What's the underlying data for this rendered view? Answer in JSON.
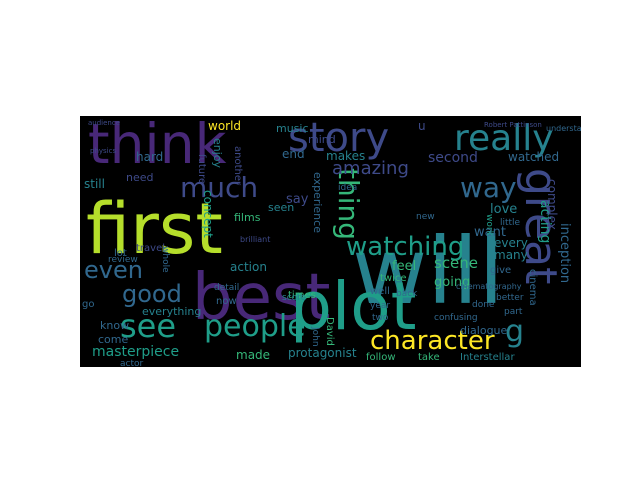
{
  "canvas": {
    "background": "#ffffff",
    "cloud_background": "#000000"
  },
  "palette": {
    "purple": "#482878",
    "indigo": "#3e4a89",
    "blue": "#31688e",
    "teal": "#26828e",
    "green": "#1f9e89",
    "mint": "#35b779",
    "lime": "#b5de2b",
    "yellow": "#fde725"
  },
  "words": [
    {
      "text": "will",
      "color": "teal"
    },
    {
      "text": "best",
      "color": "purple"
    },
    {
      "text": "first",
      "color": "lime"
    },
    {
      "text": "plot",
      "color": "green"
    },
    {
      "text": "think",
      "color": "purple"
    },
    {
      "text": "story",
      "color": "indigo"
    },
    {
      "text": "really",
      "color": "teal"
    },
    {
      "text": "great",
      "color": "indigo"
    },
    {
      "text": "people",
      "color": "green"
    },
    {
      "text": "see",
      "color": "green"
    },
    {
      "text": "watching",
      "color": "green"
    },
    {
      "text": "character",
      "color": "yellow"
    },
    {
      "text": "much",
      "color": "indigo"
    },
    {
      "text": "even",
      "color": "blue"
    },
    {
      "text": "good",
      "color": "blue"
    },
    {
      "text": "way",
      "color": "blue"
    },
    {
      "text": "thing",
      "color": "mint"
    },
    {
      "text": "amazing",
      "color": "indigo"
    },
    {
      "text": "masterpiece",
      "color": "green"
    },
    {
      "text": "g",
      "color": "teal"
    },
    {
      "text": "inception",
      "color": "blue"
    },
    {
      "text": "acting",
      "color": "green"
    },
    {
      "text": "concept",
      "color": "green"
    },
    {
      "text": "second",
      "color": "indigo"
    },
    {
      "text": "watched",
      "color": "blue"
    },
    {
      "text": "scene",
      "color": "mint"
    },
    {
      "text": "feel",
      "color": "mint"
    },
    {
      "text": "going",
      "color": "mint"
    },
    {
      "text": "love",
      "color": "teal"
    },
    {
      "text": "want",
      "color": "blue"
    },
    {
      "text": "every",
      "color": "teal"
    },
    {
      "text": "many",
      "color": "teal"
    },
    {
      "text": "action",
      "color": "teal"
    },
    {
      "text": "end",
      "color": "blue"
    },
    {
      "text": "makes",
      "color": "teal"
    },
    {
      "text": "world",
      "color": "yellow"
    },
    {
      "text": "music",
      "color": "teal"
    },
    {
      "text": "hard",
      "color": "blue"
    },
    {
      "text": "enjoy",
      "color": "teal"
    },
    {
      "text": "say",
      "color": "indigo"
    },
    {
      "text": "seen",
      "color": "teal"
    },
    {
      "text": "films",
      "color": "mint"
    },
    {
      "text": "need",
      "color": "indigo"
    },
    {
      "text": "still",
      "color": "teal"
    },
    {
      "text": "know",
      "color": "blue"
    },
    {
      "text": "come",
      "color": "blue"
    },
    {
      "text": "made",
      "color": "mint"
    },
    {
      "text": "protagonist",
      "color": "teal"
    },
    {
      "text": "follow",
      "color": "mint"
    },
    {
      "text": "take",
      "color": "mint"
    },
    {
      "text": "Interstellar",
      "color": "teal"
    },
    {
      "text": "dialogue",
      "color": "blue"
    },
    {
      "text": "experience",
      "color": "blue"
    },
    {
      "text": "complex",
      "color": "indigo"
    },
    {
      "text": "cinema",
      "color": "blue"
    },
    {
      "text": "twice",
      "color": "mint"
    },
    {
      "text": "times",
      "color": "mint"
    },
    {
      "text": "well",
      "color": "blue"
    },
    {
      "text": "give",
      "color": "blue"
    },
    {
      "text": "little",
      "color": "blue"
    },
    {
      "text": "work",
      "color": "green"
    },
    {
      "text": "lot",
      "color": "blue"
    },
    {
      "text": "now",
      "color": "blue"
    },
    {
      "text": "David",
      "color": "mint"
    },
    {
      "text": "John",
      "color": "blue"
    },
    {
      "text": "everything",
      "color": "teal"
    },
    {
      "text": "mind",
      "color": "indigo"
    },
    {
      "text": "travel",
      "color": "indigo"
    },
    {
      "text": "review",
      "color": "blue"
    },
    {
      "text": "actor",
      "color": "blue"
    },
    {
      "text": "score",
      "color": "teal"
    },
    {
      "text": "better",
      "color": "blue"
    },
    {
      "text": "done",
      "color": "blue"
    },
    {
      "text": "part",
      "color": "blue"
    },
    {
      "text": "back",
      "color": "blue"
    },
    {
      "text": "confusing",
      "color": "blue"
    },
    {
      "text": "go",
      "color": "blue"
    },
    {
      "text": "year",
      "color": "blue"
    },
    {
      "text": "two",
      "color": "blue"
    },
    {
      "text": "detail",
      "color": "blue"
    },
    {
      "text": "future",
      "color": "indigo"
    },
    {
      "text": "another",
      "color": "indigo"
    },
    {
      "text": "new",
      "color": "blue"
    },
    {
      "text": "u",
      "color": "indigo"
    },
    {
      "text": "whole",
      "color": "blue"
    },
    {
      "text": "idea",
      "color": "blue"
    },
    {
      "text": "cinematography",
      "color": "blue"
    },
    {
      "text": "understand",
      "color": "blue"
    },
    {
      "text": "Robert Pattinson",
      "color": "indigo"
    },
    {
      "text": "brilliant",
      "color": "indigo"
    },
    {
      "text": "physics",
      "color": "indigo"
    },
    {
      "text": "audience",
      "color": "indigo"
    }
  ]
}
